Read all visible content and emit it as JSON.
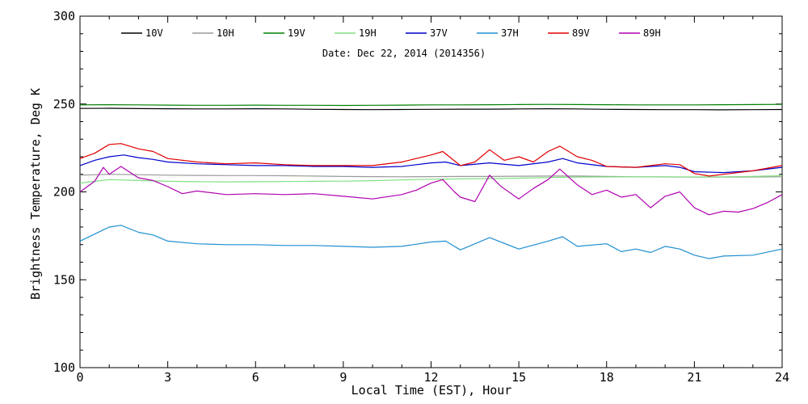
{
  "chart_data": {
    "type": "line",
    "title": "",
    "annotation": "Date: Dec 22, 2014 (2014356)",
    "xlabel": "Local Time (EST), Hour",
    "ylabel": "Brightness Temperature, Deg K",
    "xlim": [
      0,
      24
    ],
    "ylim": [
      100,
      300
    ],
    "xticks": [
      0,
      3,
      6,
      9,
      12,
      15,
      18,
      21,
      24
    ],
    "yticks": [
      100,
      150,
      200,
      250,
      300
    ],
    "grid": false,
    "legend_position": "top",
    "series": [
      {
        "name": "10V",
        "color": "#000000",
        "points": [
          [
            0,
            247.5
          ],
          [
            1,
            247.6
          ],
          [
            2,
            247.4
          ],
          [
            3,
            247.3
          ],
          [
            4,
            247.2
          ],
          [
            5,
            247.2
          ],
          [
            6,
            247.3
          ],
          [
            7,
            247.2
          ],
          [
            8,
            247.0
          ],
          [
            9,
            246.9
          ],
          [
            10,
            246.8
          ],
          [
            11,
            246.9
          ],
          [
            12,
            247.0
          ],
          [
            13,
            247.1
          ],
          [
            14,
            247.1
          ],
          [
            15,
            247.2
          ],
          [
            16,
            247.3
          ],
          [
            17,
            247.2
          ],
          [
            18,
            247.0
          ],
          [
            19,
            246.9
          ],
          [
            20,
            246.8
          ],
          [
            21,
            246.8
          ],
          [
            22,
            246.7
          ],
          [
            23,
            246.8
          ],
          [
            24,
            246.9
          ]
        ]
      },
      {
        "name": "10H",
        "color": "#999999",
        "points": [
          [
            0,
            209.5
          ],
          [
            1,
            210.0
          ],
          [
            2,
            209.8
          ],
          [
            3,
            209.5
          ],
          [
            4,
            209.4
          ],
          [
            5,
            209.3
          ],
          [
            6,
            209.3
          ],
          [
            7,
            209.2
          ],
          [
            8,
            209.0
          ],
          [
            9,
            208.8
          ],
          [
            10,
            208.7
          ],
          [
            11,
            208.6
          ],
          [
            12,
            208.7
          ],
          [
            13,
            208.8
          ],
          [
            14,
            208.8
          ],
          [
            15,
            208.9
          ],
          [
            16,
            209.0
          ],
          [
            17,
            209.0
          ],
          [
            18,
            208.8
          ],
          [
            19,
            208.6
          ],
          [
            20,
            208.5
          ],
          [
            21,
            208.4
          ],
          [
            22,
            208.4
          ],
          [
            23,
            208.5
          ],
          [
            24,
            208.6
          ]
        ]
      },
      {
        "name": "19V",
        "color": "#008000",
        "points": [
          [
            0,
            249.5
          ],
          [
            1,
            249.6
          ],
          [
            2,
            249.5
          ],
          [
            3,
            249.4
          ],
          [
            4,
            249.3
          ],
          [
            5,
            249.3
          ],
          [
            6,
            249.4
          ],
          [
            7,
            249.3
          ],
          [
            8,
            249.3
          ],
          [
            9,
            249.2
          ],
          [
            10,
            249.3
          ],
          [
            11,
            249.4
          ],
          [
            12,
            249.5
          ],
          [
            13,
            249.5
          ],
          [
            14,
            249.6
          ],
          [
            15,
            249.7
          ],
          [
            16,
            249.8
          ],
          [
            17,
            249.7
          ],
          [
            18,
            249.6
          ],
          [
            19,
            249.5
          ],
          [
            20,
            249.5
          ],
          [
            21,
            249.5
          ],
          [
            22,
            249.6
          ],
          [
            23,
            249.7
          ],
          [
            24,
            249.8
          ]
        ]
      },
      {
        "name": "19H",
        "color": "#80e080",
        "points": [
          [
            0,
            205.0
          ],
          [
            1,
            207.0
          ],
          [
            2,
            206.5
          ],
          [
            3,
            206.0
          ],
          [
            4,
            205.8
          ],
          [
            5,
            205.7
          ],
          [
            6,
            205.8
          ],
          [
            7,
            205.9
          ],
          [
            8,
            206.0
          ],
          [
            9,
            206.1
          ],
          [
            10,
            206.4
          ],
          [
            11,
            206.8
          ],
          [
            12,
            207.2
          ],
          [
            13,
            207.4
          ],
          [
            14,
            207.6
          ],
          [
            15,
            207.8
          ],
          [
            16,
            208.2
          ],
          [
            17,
            208.4
          ],
          [
            18,
            208.5
          ],
          [
            19,
            208.6
          ],
          [
            20,
            208.6
          ],
          [
            21,
            208.5
          ],
          [
            22,
            208.6
          ],
          [
            23,
            208.8
          ],
          [
            24,
            209.2
          ]
        ]
      },
      {
        "name": "37V",
        "color": "#0000cc",
        "points": [
          [
            0,
            215.0
          ],
          [
            0.5,
            218.0
          ],
          [
            1,
            220.0
          ],
          [
            1.5,
            221.0
          ],
          [
            2,
            219.5
          ],
          [
            2.5,
            218.5
          ],
          [
            3,
            217.0
          ],
          [
            4,
            216.0
          ],
          [
            5,
            215.5
          ],
          [
            6,
            215.0
          ],
          [
            7,
            215.0
          ],
          [
            8,
            214.5
          ],
          [
            9,
            214.5
          ],
          [
            10,
            214.0
          ],
          [
            11,
            214.5
          ],
          [
            12,
            216.5
          ],
          [
            12.5,
            217.0
          ],
          [
            13,
            215.0
          ],
          [
            14,
            216.5
          ],
          [
            15,
            215.0
          ],
          [
            16,
            217.0
          ],
          [
            16.5,
            219.0
          ],
          [
            17,
            216.5
          ],
          [
            18,
            214.5
          ],
          [
            19,
            214.0
          ],
          [
            20,
            215.0
          ],
          [
            20.5,
            214.0
          ],
          [
            21,
            211.5
          ],
          [
            22,
            211.0
          ],
          [
            23,
            212.0
          ],
          [
            24,
            214.0
          ]
        ]
      },
      {
        "name": "37H",
        "color": "#1f8fd0",
        "points": [
          [
            0,
            172.0
          ],
          [
            0.5,
            176.0
          ],
          [
            1,
            180.0
          ],
          [
            1.4,
            181.0
          ],
          [
            2,
            177.0
          ],
          [
            2.5,
            175.5
          ],
          [
            3,
            172.0
          ],
          [
            4,
            170.5
          ],
          [
            5,
            170.0
          ],
          [
            6,
            170.0
          ],
          [
            7,
            169.5
          ],
          [
            8,
            169.5
          ],
          [
            9,
            169.0
          ],
          [
            10,
            168.5
          ],
          [
            11,
            169.0
          ],
          [
            12,
            171.5
          ],
          [
            12.5,
            172.0
          ],
          [
            13,
            167.0
          ],
          [
            14,
            174.0
          ],
          [
            15,
            167.5
          ],
          [
            16,
            172.0
          ],
          [
            16.5,
            174.5
          ],
          [
            17,
            169.0
          ],
          [
            18,
            170.5
          ],
          [
            18.5,
            166.0
          ],
          [
            19,
            167.5
          ],
          [
            19.5,
            165.5
          ],
          [
            20,
            169.0
          ],
          [
            20.5,
            167.5
          ],
          [
            21,
            164.0
          ],
          [
            21.5,
            162.0
          ],
          [
            22,
            163.5
          ],
          [
            23,
            164.0
          ],
          [
            24,
            167.5
          ]
        ]
      },
      {
        "name": "89V",
        "color": "#e00000",
        "points": [
          [
            0,
            219.0
          ],
          [
            0.5,
            222.0
          ],
          [
            1,
            227.0
          ],
          [
            1.4,
            227.5
          ],
          [
            2,
            224.5
          ],
          [
            2.5,
            223.0
          ],
          [
            3,
            219.0
          ],
          [
            4,
            217.0
          ],
          [
            5,
            216.0
          ],
          [
            6,
            216.5
          ],
          [
            7,
            215.5
          ],
          [
            8,
            215.0
          ],
          [
            9,
            215.0
          ],
          [
            10,
            215.0
          ],
          [
            11,
            217.0
          ],
          [
            12,
            221.0
          ],
          [
            12.4,
            223.0
          ],
          [
            13,
            215.0
          ],
          [
            13.5,
            217.0
          ],
          [
            14,
            224.0
          ],
          [
            14.5,
            218.0
          ],
          [
            15,
            220.0
          ],
          [
            15.5,
            217.0
          ],
          [
            16,
            223.0
          ],
          [
            16.4,
            226.0
          ],
          [
            17,
            220.0
          ],
          [
            17.5,
            218.0
          ],
          [
            18,
            214.5
          ],
          [
            19,
            214.0
          ],
          [
            20,
            216.0
          ],
          [
            20.5,
            215.5
          ],
          [
            21,
            210.5
          ],
          [
            21.5,
            209.0
          ],
          [
            22,
            210.0
          ],
          [
            23,
            212.0
          ],
          [
            24,
            215.0
          ]
        ]
      },
      {
        "name": "89H",
        "color": "#b000b0",
        "points": [
          [
            0,
            200.0
          ],
          [
            0.5,
            206.0
          ],
          [
            0.8,
            214.0
          ],
          [
            1,
            210.0
          ],
          [
            1.4,
            214.5
          ],
          [
            2,
            208.0
          ],
          [
            2.5,
            206.5
          ],
          [
            3,
            203.0
          ],
          [
            3.5,
            199.0
          ],
          [
            4,
            200.5
          ],
          [
            5,
            198.5
          ],
          [
            6,
            199.0
          ],
          [
            7,
            198.5
          ],
          [
            8,
            199.0
          ],
          [
            9,
            197.5
          ],
          [
            10,
            196.0
          ],
          [
            11,
            198.5
          ],
          [
            11.5,
            201.0
          ],
          [
            12,
            205.0
          ],
          [
            12.4,
            207.0
          ],
          [
            12.8,
            200.0
          ],
          [
            13,
            197.0
          ],
          [
            13.5,
            194.5
          ],
          [
            14,
            209.5
          ],
          [
            14.4,
            203.0
          ],
          [
            15,
            196.0
          ],
          [
            15.5,
            202.0
          ],
          [
            16,
            207.0
          ],
          [
            16.4,
            213.0
          ],
          [
            17,
            204.0
          ],
          [
            17.5,
            198.5
          ],
          [
            18,
            201.0
          ],
          [
            18.5,
            197.0
          ],
          [
            19,
            198.5
          ],
          [
            19.5,
            191.0
          ],
          [
            20,
            197.5
          ],
          [
            20.5,
            200.0
          ],
          [
            21,
            191.0
          ],
          [
            21.5,
            187.0
          ],
          [
            22,
            189.0
          ],
          [
            22.5,
            188.5
          ],
          [
            23,
            190.5
          ],
          [
            23.5,
            194.0
          ],
          [
            24,
            198.5
          ]
        ]
      }
    ]
  }
}
